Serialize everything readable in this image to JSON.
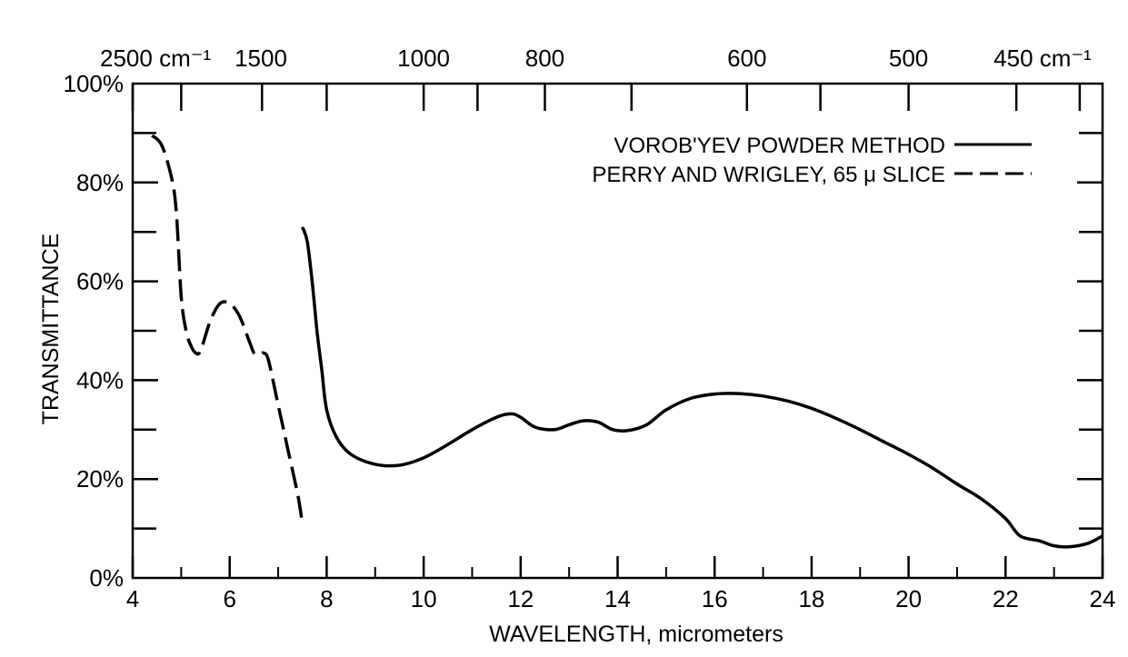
{
  "chart_data": {
    "type": "line",
    "xlabel": "WAVELENGTH, micrometers",
    "ylabel": "TRANSMITTANCE",
    "xlim": [
      4,
      24
    ],
    "ylim": [
      0,
      100
    ],
    "x_ticks": [
      4,
      6,
      8,
      10,
      12,
      14,
      16,
      18,
      20,
      22,
      24
    ],
    "x_tick_labels": [
      "4",
      "6",
      "8",
      "10",
      "12",
      "14",
      "16",
      "18",
      "20",
      "22",
      "24"
    ],
    "y_ticks": [
      0,
      20,
      40,
      60,
      80,
      100
    ],
    "y_tick_labels": [
      "0%",
      "20%",
      "40%",
      "60%",
      "80%",
      "100%"
    ],
    "top_axis": {
      "label_positions_micrometers": [
        4,
        6.667,
        10,
        12.5,
        16.667,
        20,
        22.222
      ],
      "labels": [
        "2500 cm⁻¹",
        "1500",
        "1000",
        "800",
        "600",
        "500",
        "450 cm⁻¹"
      ]
    },
    "grid": false,
    "legend_position": "top-right",
    "series": [
      {
        "name": "VOROB'YEV POWDER METHOD",
        "style": "solid",
        "x": [
          7.5,
          7.6,
          7.7,
          7.8,
          7.9,
          8.0,
          8.2,
          8.5,
          9.0,
          9.5,
          10.0,
          10.5,
          11.0,
          11.5,
          11.8,
          12.0,
          12.3,
          12.7,
          13.0,
          13.3,
          13.6,
          13.9,
          14.2,
          14.6,
          15.0,
          15.5,
          16.0,
          16.5,
          17.0,
          17.5,
          18.0,
          18.5,
          19.0,
          19.5,
          20.0,
          20.5,
          21.0,
          21.5,
          22.0,
          22.3,
          22.7,
          23.0,
          23.3,
          23.7,
          24.0
        ],
        "y": [
          71,
          68,
          60,
          50,
          42,
          34,
          28.5,
          25,
          23,
          22.8,
          24.3,
          27,
          30,
          32.5,
          33.2,
          32.5,
          30.5,
          30,
          31,
          31.8,
          31.5,
          30,
          29.8,
          31,
          34,
          36.3,
          37.2,
          37.3,
          36.8,
          35.8,
          34.3,
          32.3,
          30,
          27.5,
          25,
          22.2,
          19,
          16,
          12,
          8.5,
          7.5,
          6.5,
          6.3,
          7,
          8.5
        ]
      },
      {
        "name": "PERRY AND WRIGLEY, 65 μ SLICE",
        "style": "dashed",
        "x": [
          4.4,
          4.6,
          4.8,
          4.9,
          5.0,
          5.1,
          5.2,
          5.3,
          5.4,
          5.6,
          5.8,
          6.0,
          6.2,
          6.4,
          6.5,
          6.6,
          6.7,
          6.8,
          7.0,
          7.2,
          7.4,
          7.5
        ],
        "y": [
          89.5,
          87.5,
          81,
          74,
          57,
          50,
          47,
          45.5,
          46,
          52,
          55.5,
          55.5,
          53,
          48,
          45.5,
          45.2,
          45.5,
          44,
          35,
          26,
          17,
          11
        ]
      }
    ]
  }
}
